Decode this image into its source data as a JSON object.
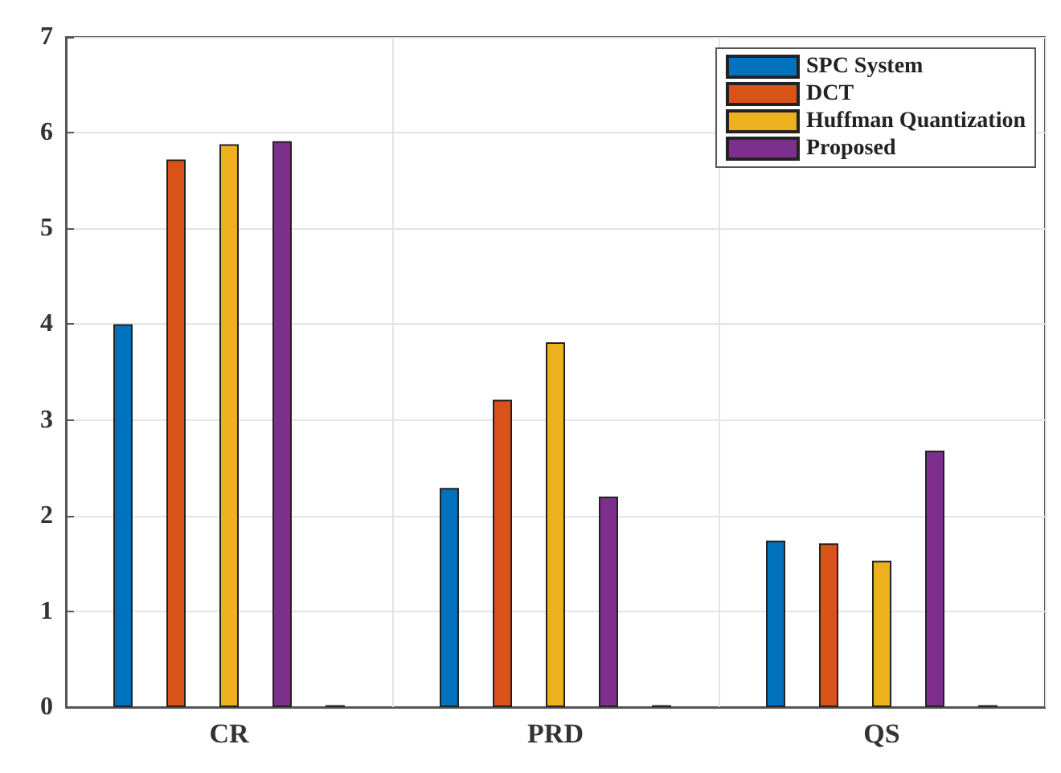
{
  "chart_data": {
    "type": "bar",
    "categories": [
      "CR",
      "PRD",
      "QS"
    ],
    "series": [
      {
        "name": "SPC System",
        "color": "#0072bd",
        "values": [
          4.0,
          2.29,
          1.74
        ]
      },
      {
        "name": "DCT",
        "color": "#d95319",
        "values": [
          5.72,
          3.21,
          1.71
        ]
      },
      {
        "name": "Huffman Quantization",
        "color": "#edb120",
        "values": [
          5.88,
          3.81,
          1.53
        ]
      },
      {
        "name": "Proposed",
        "color": "#7e2f8e",
        "values": [
          5.91,
          2.2,
          2.68
        ]
      },
      {
        "color": "#77ac30",
        "values": [
          0.02,
          0.02,
          0.02
        ]
      }
    ],
    "ylim": [
      0,
      7
    ],
    "yticks": [
      0,
      1,
      2,
      3,
      4,
      5,
      6,
      7
    ],
    "grid": true,
    "legend": "top right"
  }
}
